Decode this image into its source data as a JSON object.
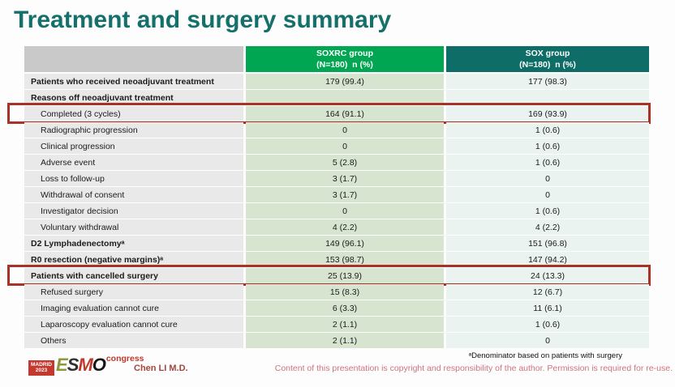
{
  "slide": {
    "title": "Treatment and surgery summary",
    "presenter": "Chen LI M.D.",
    "footnote": "ᵃDenominator based on patients with surgery",
    "copyright": "Content of this presentation is copyright and responsibility of the author. Permission is required for re-use."
  },
  "logo": {
    "location": "MADRID",
    "year": "2023",
    "letter_e": "E",
    "letter_s": "S",
    "letter_m": "M",
    "letter_o": "O",
    "congress": "congress"
  },
  "colors": {
    "title": "#15706b",
    "soxrc_header_bg": "#00a651",
    "sox_header_bg": "#0e6e67",
    "label_header_bg": "#c9c9c9",
    "label_cell_bg": "#e9e9e9",
    "soxrc_cell_bg": "#d7e4d0",
    "sox_cell_bg": "#eaf3ef",
    "highlight_border": "#a93226",
    "copyright_text": "#cb7480"
  },
  "table": {
    "columns": [
      {
        "key": "label",
        "line1": "",
        "line2": ""
      },
      {
        "key": "soxrc",
        "line1": "SOXRC group",
        "line2": "(N=180)  n (%)"
      },
      {
        "key": "sox",
        "line1": "SOX group",
        "line2": "(N=180)  n (%)"
      }
    ],
    "rows": [
      {
        "label": "Patients who received neoadjuvant treatment",
        "bold": true,
        "indent": false,
        "highlight": false,
        "soxrc": "179 (99.4)",
        "sox": "177 (98.3)"
      },
      {
        "label": "Reasons off neoadjuvant treatment",
        "bold": true,
        "indent": false,
        "highlight": false,
        "soxrc": "",
        "sox": ""
      },
      {
        "label": "Completed (3 cycles)",
        "bold": false,
        "indent": true,
        "highlight": true,
        "soxrc": "164 (91.1)",
        "sox": "169 (93.9)"
      },
      {
        "label": "Radiographic progression",
        "bold": false,
        "indent": true,
        "highlight": false,
        "soxrc": "0",
        "sox": "1 (0.6)"
      },
      {
        "label": "Clinical progression",
        "bold": false,
        "indent": true,
        "highlight": false,
        "soxrc": "0",
        "sox": "1 (0.6)"
      },
      {
        "label": "Adverse event",
        "bold": false,
        "indent": true,
        "highlight": false,
        "soxrc": "5 (2.8)",
        "sox": "1 (0.6)"
      },
      {
        "label": "Loss to follow-up",
        "bold": false,
        "indent": true,
        "highlight": false,
        "soxrc": "3 (1.7)",
        "sox": "0"
      },
      {
        "label": "Withdrawal of consent",
        "bold": false,
        "indent": true,
        "highlight": false,
        "soxrc": "3 (1.7)",
        "sox": "0"
      },
      {
        "label": "Investigator decision",
        "bold": false,
        "indent": true,
        "highlight": false,
        "soxrc": "0",
        "sox": "1 (0.6)"
      },
      {
        "label": "Voluntary withdrawal",
        "bold": false,
        "indent": true,
        "highlight": false,
        "soxrc": "4 (2.2)",
        "sox": "4 (2.2)"
      },
      {
        "label": "D2 Lymphadenectomyᵃ",
        "bold": true,
        "indent": false,
        "highlight": false,
        "soxrc": "149 (96.1)",
        "sox": "151 (96.8)"
      },
      {
        "label": "R0 resection (negative margins)ᵃ",
        "bold": true,
        "indent": false,
        "highlight": false,
        "soxrc": "153 (98.7)",
        "sox": "147 (94.2)"
      },
      {
        "label": "Patients with cancelled surgery",
        "bold": true,
        "indent": false,
        "highlight": true,
        "soxrc": "25 (13.9)",
        "sox": "24 (13.3)"
      },
      {
        "label": "Refused surgery",
        "bold": false,
        "indent": true,
        "highlight": false,
        "soxrc": "15 (8.3)",
        "sox": "12 (6.7)"
      },
      {
        "label": "Imaging evaluation cannot cure",
        "bold": false,
        "indent": true,
        "highlight": false,
        "soxrc": "6 (3.3)",
        "sox": "11 (6.1)"
      },
      {
        "label": "Laparoscopy evaluation cannot cure",
        "bold": false,
        "indent": true,
        "highlight": false,
        "soxrc": "2 (1.1)",
        "sox": "1 (0.6)"
      },
      {
        "label": "Others",
        "bold": false,
        "indent": true,
        "highlight": false,
        "soxrc": "2 (1.1)",
        "sox": "0"
      }
    ]
  }
}
